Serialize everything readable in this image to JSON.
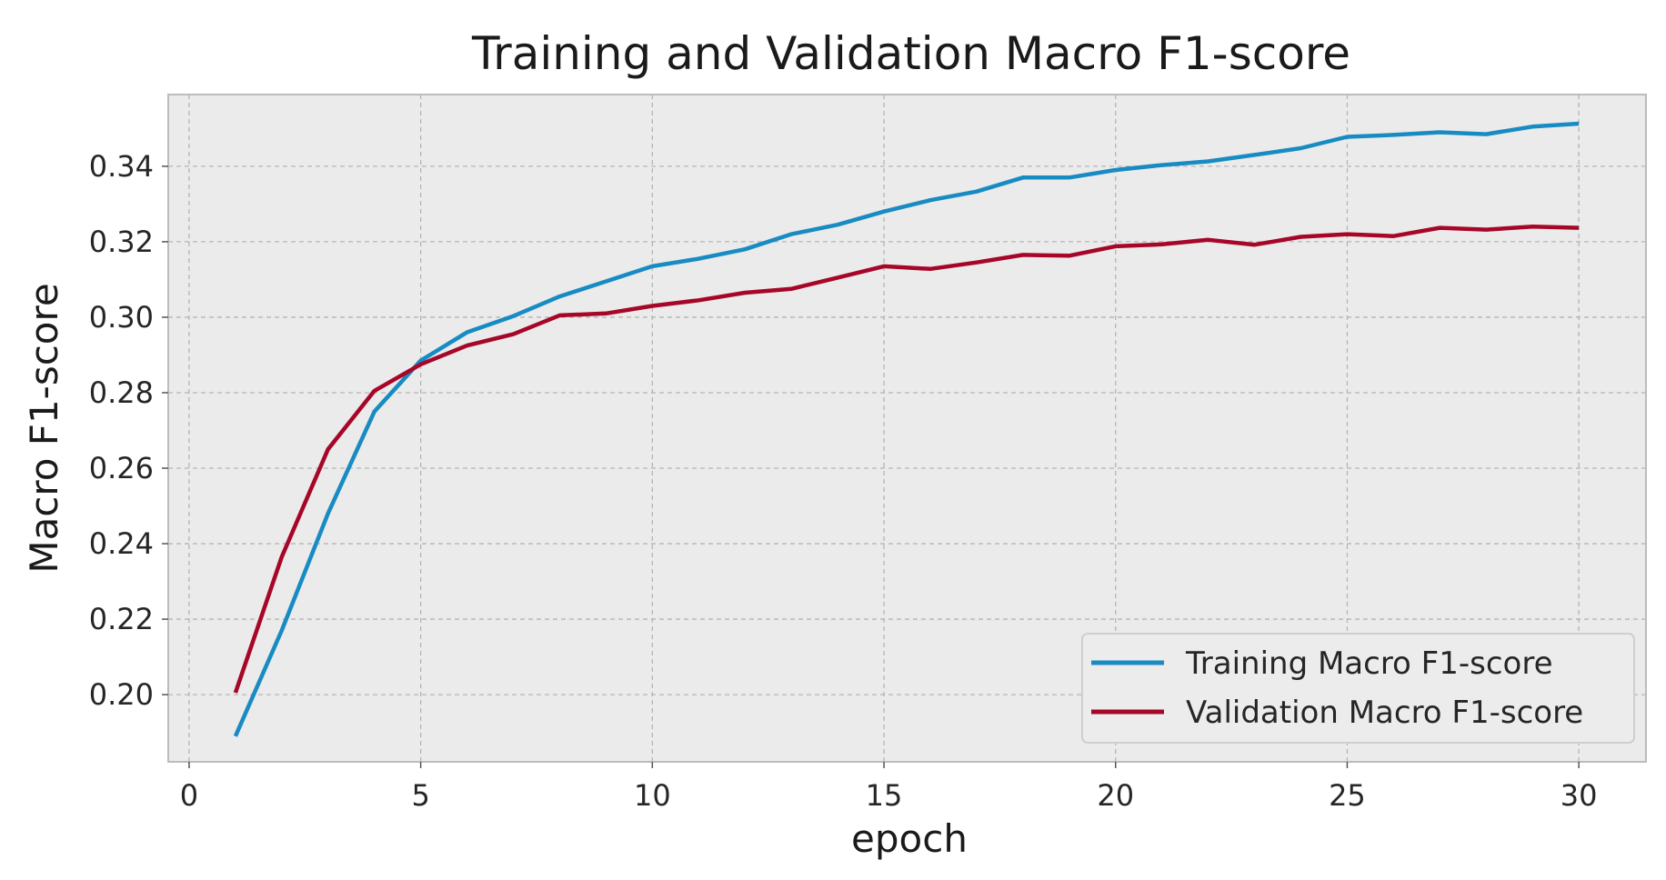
{
  "chart_data": {
    "type": "line",
    "title": "Training and Validation Macro F1-score",
    "xlabel": "epoch",
    "ylabel": "Macro F1-score",
    "xlim": [
      -0.45,
      31.45
    ],
    "ylim": [
      0.1822,
      0.359
    ],
    "xticks": [
      0,
      5,
      10,
      15,
      20,
      25,
      30
    ],
    "xtick_labels": [
      "0",
      "5",
      "10",
      "15",
      "20",
      "25",
      "30"
    ],
    "yticks": [
      0.2,
      0.22,
      0.24,
      0.26,
      0.28,
      0.3,
      0.32,
      0.34
    ],
    "ytick_labels": [
      "0.20",
      "0.22",
      "0.24",
      "0.26",
      "0.28",
      "0.30",
      "0.32",
      "0.34"
    ],
    "grid": true,
    "legend_position": "lower-right",
    "x": [
      1,
      2,
      3,
      4,
      5,
      6,
      7,
      8,
      9,
      10,
      11,
      12,
      13,
      14,
      15,
      16,
      17,
      18,
      19,
      20,
      21,
      22,
      23,
      24,
      25,
      26,
      27,
      28,
      29,
      30
    ],
    "series": [
      {
        "name": "Training Macro F1-score",
        "color": "#188bc2",
        "values": [
          0.189,
          0.217,
          0.248,
          0.275,
          0.2885,
          0.296,
          0.3003,
          0.3055,
          0.3095,
          0.3135,
          0.3155,
          0.318,
          0.322,
          0.3245,
          0.328,
          0.331,
          0.3333,
          0.337,
          0.337,
          0.339,
          0.3403,
          0.3413,
          0.343,
          0.3448,
          0.3478,
          0.3483,
          0.349,
          0.3485,
          0.3505,
          0.3513
        ]
      },
      {
        "name": "Validation Macro F1-score",
        "color": "#a60628",
        "values": [
          0.2005,
          0.2365,
          0.265,
          0.2805,
          0.2875,
          0.2925,
          0.2955,
          0.3005,
          0.301,
          0.303,
          0.3045,
          0.3065,
          0.3075,
          0.3105,
          0.3135,
          0.3128,
          0.3145,
          0.3165,
          0.3163,
          0.3188,
          0.3193,
          0.3205,
          0.3192,
          0.3213,
          0.322,
          0.3215,
          0.3237,
          0.3232,
          0.324,
          0.3237
        ]
      }
    ]
  }
}
